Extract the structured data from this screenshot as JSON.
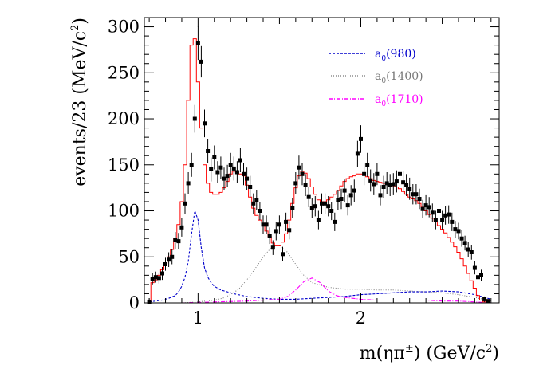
{
  "chart_data": {
    "type": "line",
    "xlabel_main": "m(ηπ",
    "xlabel_sup": "±",
    "xlabel_tail": ") (GeV/c",
    "xlabel_sup2": "2",
    "xlabel_close": ")",
    "ylabel_main": "events/23 (MeV/c",
    "ylabel_sup": "2",
    "ylabel_close": ")",
    "xlim": [
      0.67,
      2.85
    ],
    "ylim": [
      0,
      310
    ],
    "x_ticks": [
      1,
      2
    ],
    "x_tick_labels": [
      "1",
      "2"
    ],
    "y_ticks": [
      0,
      50,
      100,
      150,
      200,
      250,
      300
    ],
    "y_tick_labels": [
      "0",
      "50",
      "100",
      "150",
      "200",
      "250",
      "300"
    ],
    "grid": false,
    "legend_position": "top-right",
    "legend": [
      {
        "label_main": "a",
        "label_sub": "0",
        "label_tail": "(980)",
        "color": "#0000cc",
        "dash": "3,2"
      },
      {
        "label_main": "a",
        "label_sub": "0",
        "label_tail": "(1400)",
        "color": "#777777",
        "dash": "1,2"
      },
      {
        "label_main": "a",
        "label_sub": "0",
        "label_tail": "(1710)",
        "color": "#ff00ff",
        "dash": "5,2,1,2"
      }
    ],
    "data_points": {
      "x": [
        0.7,
        0.72,
        0.74,
        0.76,
        0.78,
        0.8,
        0.82,
        0.84,
        0.86,
        0.88,
        0.9,
        0.92,
        0.94,
        0.96,
        0.98,
        1.0,
        1.02,
        1.04,
        1.06,
        1.08,
        1.1,
        1.12,
        1.14,
        1.16,
        1.18,
        1.2,
        1.22,
        1.24,
        1.26,
        1.28,
        1.3,
        1.32,
        1.34,
        1.36,
        1.38,
        1.4,
        1.42,
        1.44,
        1.46,
        1.48,
        1.5,
        1.52,
        1.54,
        1.56,
        1.58,
        1.6,
        1.62,
        1.64,
        1.66,
        1.68,
        1.7,
        1.72,
        1.74,
        1.76,
        1.78,
        1.8,
        1.82,
        1.84,
        1.86,
        1.88,
        1.9,
        1.92,
        1.94,
        1.96,
        1.98,
        2.0,
        2.02,
        2.04,
        2.06,
        2.08,
        2.1,
        2.12,
        2.14,
        2.16,
        2.18,
        2.2,
        2.22,
        2.24,
        2.26,
        2.28,
        2.3,
        2.32,
        2.34,
        2.36,
        2.38,
        2.4,
        2.42,
        2.44,
        2.46,
        2.48,
        2.5,
        2.52,
        2.54,
        2.56,
        2.58,
        2.6,
        2.62,
        2.64,
        2.66,
        2.68,
        2.7,
        2.72,
        2.74,
        2.76,
        2.78
      ],
      "y": [
        1,
        26,
        28,
        27,
        32,
        42,
        47,
        50,
        68,
        67,
        82,
        108,
        130,
        150,
        200,
        282,
        262,
        195,
        165,
        145,
        158,
        142,
        147,
        135,
        138,
        150,
        146,
        142,
        155,
        140,
        135,
        126,
        108,
        112,
        100,
        85,
        85,
        73,
        60,
        78,
        85,
        53,
        88,
        79,
        103,
        130,
        147,
        140,
        128,
        115,
        103,
        105,
        90,
        108,
        108,
        105,
        100,
        88,
        112,
        113,
        122,
        106,
        117,
        122,
        162,
        178,
        140,
        150,
        133,
        129,
        140,
        117,
        126,
        130,
        128,
        129,
        132,
        140,
        131,
        128,
        124,
        118,
        118,
        113,
        102,
        106,
        104,
        98,
        90,
        100,
        90,
        95,
        96,
        88,
        80,
        78,
        70,
        65,
        58,
        55,
        38,
        28,
        30,
        4,
        2
      ],
      "err": [
        4,
        6,
        6,
        6,
        7,
        7,
        8,
        8,
        9,
        9,
        10,
        11,
        12,
        13,
        15,
        18,
        17,
        15,
        13,
        13,
        13,
        12,
        12,
        12,
        12,
        13,
        13,
        12,
        13,
        12,
        12,
        12,
        11,
        11,
        10,
        10,
        10,
        9,
        8,
        10,
        10,
        8,
        10,
        10,
        11,
        12,
        13,
        12,
        12,
        11,
        11,
        11,
        10,
        11,
        11,
        11,
        10,
        10,
        11,
        11,
        12,
        11,
        11,
        12,
        14,
        15,
        12,
        13,
        12,
        12,
        12,
        11,
        12,
        12,
        12,
        12,
        12,
        12,
        12,
        12,
        12,
        11,
        11,
        11,
        10,
        11,
        11,
        10,
        10,
        10,
        10,
        10,
        10,
        10,
        9,
        9,
        9,
        8,
        8,
        8,
        7,
        6,
        6,
        3,
        2
      ]
    },
    "fit_total": {
      "x": [
        0.7,
        0.72,
        0.74,
        0.76,
        0.78,
        0.8,
        0.82,
        0.84,
        0.86,
        0.88,
        0.9,
        0.92,
        0.94,
        0.96,
        0.98,
        1.0,
        1.02,
        1.04,
        1.06,
        1.08,
        1.1,
        1.12,
        1.14,
        1.16,
        1.18,
        1.2,
        1.22,
        1.24,
        1.26,
        1.28,
        1.3,
        1.32,
        1.34,
        1.36,
        1.38,
        1.4,
        1.42,
        1.44,
        1.46,
        1.48,
        1.5,
        1.52,
        1.54,
        1.56,
        1.58,
        1.6,
        1.62,
        1.64,
        1.66,
        1.68,
        1.7,
        1.72,
        1.74,
        1.76,
        1.78,
        1.8,
        1.82,
        1.84,
        1.86,
        1.88,
        1.9,
        1.92,
        1.94,
        1.96,
        1.98,
        2.0,
        2.02,
        2.04,
        2.06,
        2.08,
        2.1,
        2.12,
        2.14,
        2.16,
        2.18,
        2.2,
        2.22,
        2.24,
        2.26,
        2.28,
        2.3,
        2.32,
        2.34,
        2.36,
        2.38,
        2.4,
        2.42,
        2.44,
        2.46,
        2.48,
        2.5,
        2.52,
        2.54,
        2.56,
        2.58,
        2.6,
        2.62,
        2.64,
        2.66,
        2.68,
        2.7,
        2.72,
        2.74,
        2.76,
        2.78,
        2.8
      ],
      "y": [
        2,
        22,
        25,
        30,
        36,
        43,
        50,
        58,
        70,
        85,
        110,
        150,
        220,
        280,
        287,
        240,
        190,
        150,
        130,
        120,
        118,
        118,
        120,
        125,
        132,
        140,
        143,
        142,
        140,
        138,
        128,
        115,
        103,
        95,
        90,
        85,
        78,
        72,
        65,
        62,
        62,
        66,
        75,
        90,
        108,
        125,
        138,
        143,
        141,
        135,
        126,
        118,
        112,
        110,
        110,
        112,
        115,
        118,
        122,
        127,
        132,
        135,
        137,
        138,
        140,
        140,
        139,
        137,
        135,
        133,
        132,
        131,
        130,
        129,
        128,
        127,
        126,
        124,
        121,
        118,
        115,
        113,
        111,
        108,
        104,
        100,
        96,
        92,
        88,
        84,
        80,
        76,
        71,
        66,
        61,
        55,
        48,
        40,
        32,
        24,
        16,
        8,
        3,
        1,
        0,
        0
      ]
    },
    "fit_a0_980": {
      "x": [
        0.7,
        0.74,
        0.78,
        0.82,
        0.86,
        0.88,
        0.9,
        0.92,
        0.94,
        0.96,
        0.98,
        1.0,
        1.02,
        1.04,
        1.06,
        1.08,
        1.1,
        1.14,
        1.18,
        1.22,
        1.3,
        1.4,
        1.5,
        1.6,
        1.7,
        1.8,
        1.9,
        2.0,
        2.1,
        2.2,
        2.3,
        2.4,
        2.5,
        2.6,
        2.7,
        2.8
      ],
      "y": [
        1,
        2,
        3,
        5,
        8,
        12,
        18,
        28,
        45,
        75,
        100,
        90,
        60,
        38,
        28,
        22,
        18,
        14,
        12,
        10,
        7,
        5,
        4,
        4,
        5,
        6,
        7,
        9,
        10,
        11,
        12,
        12,
        13,
        12,
        9,
        4
      ]
    },
    "fit_a0_1400": {
      "x": [
        0.7,
        0.8,
        0.9,
        1.0,
        1.1,
        1.15,
        1.2,
        1.25,
        1.3,
        1.35,
        1.4,
        1.45,
        1.5,
        1.55,
        1.6,
        1.65,
        1.7,
        1.8,
        1.9,
        2.0,
        2.1,
        2.2,
        2.3,
        2.4,
        2.5,
        2.6,
        2.7,
        2.8
      ],
      "y": [
        0,
        0,
        0,
        1,
        3,
        5,
        9,
        15,
        25,
        37,
        50,
        60,
        62,
        55,
        42,
        30,
        22,
        17,
        15,
        15,
        14,
        14,
        13,
        12,
        11,
        9,
        6,
        2
      ]
    },
    "fit_a0_1710": {
      "x": [
        0.7,
        0.9,
        1.1,
        1.3,
        1.5,
        1.55,
        1.6,
        1.65,
        1.7,
        1.75,
        1.8,
        1.85,
        1.9,
        2.0,
        2.1,
        2.2,
        2.3,
        2.4,
        2.5,
        2.6,
        2.7,
        2.8
      ],
      "y": [
        0,
        0,
        1,
        2,
        4,
        7,
        14,
        23,
        27,
        22,
        13,
        8,
        6,
        4,
        3,
        3,
        3,
        3,
        2,
        2,
        1,
        0
      ]
    }
  }
}
